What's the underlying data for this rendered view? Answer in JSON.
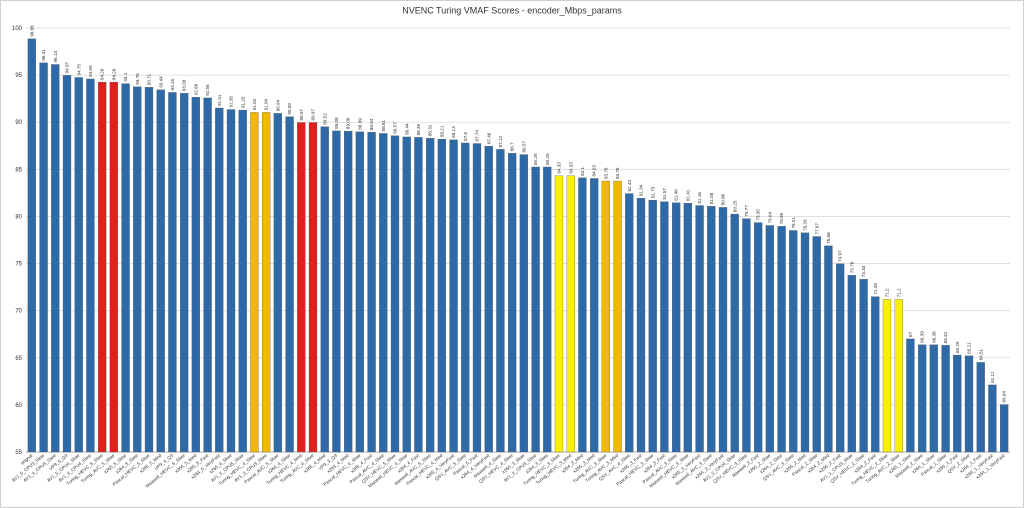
{
  "chart_data": {
    "type": "bar",
    "title": "NVENC Turing VMAF Scores - encoder_Mbps_params",
    "categories": [
      "orignal",
      "AV1_5_CPU3_Slow",
      "AV1_4_CPU3_Slow",
      "VP9_5_Q3",
      "AV1_5_CPU4_Slow",
      "AV1_4_CPU4_Slow",
      "Turing_HEVC_5_Slow",
      "Turing_AVC_5_Slow",
      "x265_5_Slow",
      "x264_5_Slow",
      "Pascal_HEVC_5_Slow",
      "x265_5_Med",
      "VP9_4_Q3",
      "Maxwell_HEVC_5_Slow",
      "x264_5_Med",
      "x265_5_Fast",
      "x264_5_VeryFast",
      "x265_4_Slow",
      "AV1_5_CPU5_Slow",
      "Turing_HEVC_4_Slow",
      "AV1_3_CPU3_Slow",
      "Pascal_AVC_5_Slow",
      "x264_4_Slow",
      "Turing_HEVC_4_Med",
      "Turing_AVC_4_Slow",
      "x265_4_Med",
      "VP9_3_Q3",
      "x264_4_Med",
      "Pascal_HEVC_4_Slow",
      "x265_4_Fast",
      "Pascal_AVC_4_Slow",
      "QSV_HEVC_5_Slow",
      "Maxwell_HEVC_4_Slow",
      "x264_4_Fast",
      "Maxwell_AVC_5_Slow",
      "Pascal_HEVC_4_Med",
      "x265_4_VeryFast",
      "QSV_AVC_5_Slow",
      "Pascal_5_Fast",
      "x264_4_VeryFast",
      "Maxwell_4_Slow",
      "QSV_HEVC_4_Slow",
      "x265_3_Slow",
      "AV1_2_CPU3_Slow",
      "x264_3_Slow",
      "Turing_HEVC_3_Slow",
      "Turing_HEVC_3_Med",
      "x264_3_Med",
      "x265_3_Med",
      "Turing_AVC_3_Slow",
      "Turing_AVC_3_Med",
      "QSV_AVC_4_Slow",
      "x265_3_Fast",
      "Pascal_HEVC_3_Slow",
      "x264_3_Fast",
      "Pascal_AVC_3_Slow",
      "Maxwell_HEVC_3_Slow",
      "x265_3_VeryFast",
      "Maxwell_AVC_3_Slow",
      "x264_3_VeryFast",
      "AV1_2_CPU4_Slow",
      "QSV_HEVC_3_Slow",
      "Maxwell_3_Fast",
      "x265_2_Slow",
      "x264_2_Slow",
      "QSV_AVC_3_Slow",
      "x265_2_Med",
      "Pascal_2_Slow",
      "x264_2_Med",
      "x265_2_Fast",
      "AV1_1_CPU3_Slow",
      "QSV_HEVC_2_Slow",
      "x264_2_Fast",
      "Turing_HEVC_2_Slow",
      "Turing_AVC_2_Slow",
      "x265_1_Slow",
      "Maxwell_2_Slow",
      "x264_1_Slow",
      "Pascal_1_Slow",
      "x265_1_Fast",
      "QSV_2_Slow",
      "x264_1_Fast",
      "x265_1_VeryFast",
      "x264_1_VeryFast"
    ],
    "values": [
      98.86,
      96.31,
      96.13,
      94.97,
      94.75,
      94.59,
      94.26,
      94.26,
      94.1,
      93.76,
      93.71,
      93.44,
      93.16,
      93.08,
      92.66,
      92.58,
      91.51,
      91.35,
      91.29,
      91.04,
      91.04,
      90.94,
      90.59,
      89.97,
      89.97,
      89.52,
      89.08,
      89.06,
      88.99,
      88.94,
      88.81,
      88.57,
      88.44,
      88.39,
      88.31,
      88.21,
      88.13,
      87.8,
      87.74,
      87.46,
      87.12,
      86.7,
      86.57,
      85.25,
      85.25,
      84.33,
      84.33,
      84.1,
      84.03,
      83.76,
      83.76,
      82.43,
      81.94,
      81.73,
      81.57,
      81.46,
      81.41,
      81.16,
      81.08,
      80.96,
      80.25,
      79.77,
      79.35,
      79.04,
      78.95,
      78.51,
      78.26,
      77.87,
      76.88,
      74.97,
      73.76,
      73.33,
      71.49,
      71.2,
      71.2,
      67.0,
      66.39,
      66.38,
      66.32,
      65.29,
      65.21,
      64.51,
      62.12,
      60.04
    ],
    "colors": [
      "#2e6aa8",
      "#2e6aa8",
      "#2e6aa8",
      "#2e6aa8",
      "#2e6aa8",
      "#2e6aa8",
      "#e0201c",
      "#e0201c",
      "#2e6aa8",
      "#2e6aa8",
      "#2e6aa8",
      "#2e6aa8",
      "#2e6aa8",
      "#2e6aa8",
      "#2e6aa8",
      "#2e6aa8",
      "#2e6aa8",
      "#2e6aa8",
      "#2e6aa8",
      "#f0b800",
      "#f0b800",
      "#2e6aa8",
      "#2e6aa8",
      "#e0201c",
      "#e0201c",
      "#2e6aa8",
      "#2e6aa8",
      "#2e6aa8",
      "#2e6aa8",
      "#2e6aa8",
      "#2e6aa8",
      "#2e6aa8",
      "#2e6aa8",
      "#2e6aa8",
      "#2e6aa8",
      "#2e6aa8",
      "#2e6aa8",
      "#2e6aa8",
      "#2e6aa8",
      "#2e6aa8",
      "#2e6aa8",
      "#2e6aa8",
      "#2e6aa8",
      "#2e6aa8",
      "#2e6aa8",
      "#f8f000",
      "#f8f000",
      "#2e6aa8",
      "#2e6aa8",
      "#f0b800",
      "#f0b800",
      "#2e6aa8",
      "#2e6aa8",
      "#2e6aa8",
      "#2e6aa8",
      "#2e6aa8",
      "#2e6aa8",
      "#2e6aa8",
      "#2e6aa8",
      "#2e6aa8",
      "#2e6aa8",
      "#2e6aa8",
      "#2e6aa8",
      "#2e6aa8",
      "#2e6aa8",
      "#2e6aa8",
      "#2e6aa8",
      "#2e6aa8",
      "#2e6aa8",
      "#2e6aa8",
      "#2e6aa8",
      "#2e6aa8",
      "#2e6aa8",
      "#f8f000",
      "#f8f000",
      "#2e6aa8",
      "#2e6aa8",
      "#2e6aa8",
      "#2e6aa8",
      "#2e6aa8",
      "#2e6aa8",
      "#2e6aa8",
      "#2e6aa8",
      "#2e6aa8"
    ],
    "ylim": [
      55,
      100
    ],
    "yticks": [
      55,
      60,
      65,
      70,
      75,
      80,
      85,
      90,
      95,
      100
    ],
    "grid": true
  }
}
